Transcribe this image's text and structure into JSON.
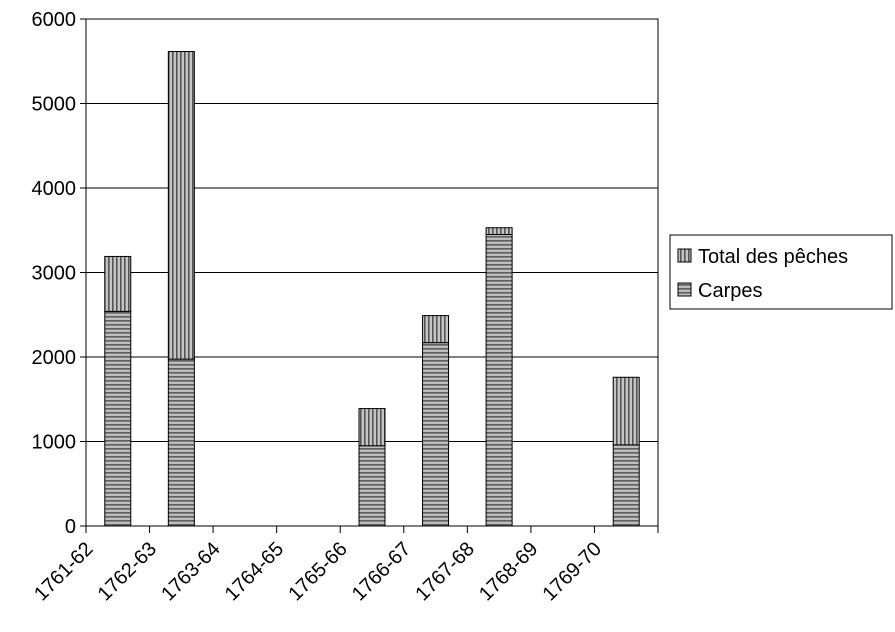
{
  "chart_data": {
    "type": "bar",
    "stacked": true,
    "title": "",
    "xlabel": "",
    "ylabel": "",
    "categories": [
      "1761-62",
      "1762-63",
      "1763-64",
      "1764-65",
      "1765-66",
      "1766-67",
      "1767-68",
      "1768-69",
      "1769-70"
    ],
    "series": [
      {
        "name": "Carpes",
        "pattern": "horizontal-stripes",
        "values": [
          2540,
          1975,
          0,
          0,
          950,
          2170,
          3450,
          0,
          960
        ]
      },
      {
        "name": "Total des pêches",
        "pattern": "vertical-stripes",
        "values": [
          650,
          3640,
          0,
          0,
          440,
          320,
          80,
          0,
          800
        ]
      }
    ],
    "ylim": [
      0,
      6000
    ],
    "yticks": [
      0,
      1000,
      2000,
      3000,
      4000,
      5000,
      6000
    ],
    "grid": true,
    "legend_position": "right",
    "legend_order": [
      "Total des pêches",
      "Carpes"
    ],
    "colors": {
      "bar_fill": "#8c8c8c",
      "stripe_light": "#bdbdbd",
      "stripe_dark": "#5a5a5a",
      "axis": "#000000",
      "grid": "#000000"
    }
  }
}
